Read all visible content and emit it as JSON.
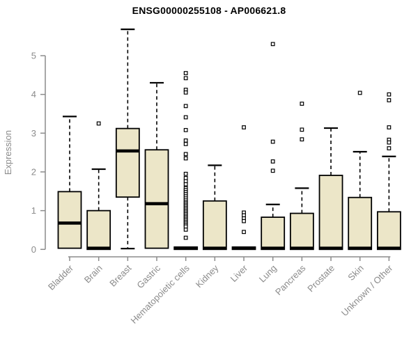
{
  "chart_data": {
    "type": "boxplot",
    "title": "ENSG00000255108 - AP006621.8",
    "ylabel": "Expression",
    "ylim": [
      0,
      5
    ],
    "yticks": [
      0,
      1,
      2,
      3,
      4,
      5
    ],
    "grid": false,
    "legend": "none",
    "categories": [
      "Bladder",
      "Brain",
      "Breast",
      "Gastric",
      "Hematopoietic cells",
      "Kidney",
      "Liver",
      "Lung",
      "Pancreas",
      "Prostate",
      "Skin",
      "Unknown / Other"
    ],
    "series": [
      {
        "category": "Bladder",
        "q1": 0.03,
        "median": 0.68,
        "q3": 1.49,
        "whisker_low": null,
        "whisker_high": 3.43,
        "outliers": []
      },
      {
        "category": "Brain",
        "q1": 0.0,
        "median": 0.03,
        "q3": 1.0,
        "whisker_low": null,
        "whisker_high": 2.07,
        "outliers": [
          3.25
        ]
      },
      {
        "category": "Breast",
        "q1": 1.35,
        "median": 2.54,
        "q3": 3.12,
        "whisker_low": 0.02,
        "whisker_high": 5.68,
        "outliers": []
      },
      {
        "category": "Gastric",
        "q1": 0.03,
        "median": 1.18,
        "q3": 2.57,
        "whisker_low": null,
        "whisker_high": 4.3,
        "outliers": []
      },
      {
        "category": "Hematopoietic cells",
        "q1": 0.0,
        "median": 0.03,
        "q3": 0.06,
        "whisker_low": null,
        "whisker_high": null,
        "outliers": [
          4.55,
          4.42,
          4.12,
          4.05,
          3.7,
          3.41,
          3.08,
          2.81,
          2.72,
          2.46,
          2.35,
          1.95,
          1.84,
          1.76,
          1.68,
          1.58,
          1.53,
          1.48,
          1.43,
          1.38,
          1.33,
          1.28,
          1.23,
          1.19,
          1.15,
          1.11,
          1.07,
          1.03,
          0.99,
          0.95,
          0.91,
          0.87,
          0.83,
          0.79,
          0.75,
          0.71,
          0.67,
          0.63,
          0.59,
          0.51,
          0.3
        ]
      },
      {
        "category": "Kidney",
        "q1": 0.0,
        "median": 0.03,
        "q3": 1.25,
        "whisker_low": null,
        "whisker_high": 2.17,
        "outliers": []
      },
      {
        "category": "Liver",
        "q1": 0.0,
        "median": 0.03,
        "q3": 0.06,
        "whisker_low": null,
        "whisker_high": null,
        "outliers": [
          3.15,
          0.95,
          0.88,
          0.8,
          0.73,
          0.45
        ]
      },
      {
        "category": "Lung",
        "q1": 0.0,
        "median": 0.03,
        "q3": 0.83,
        "whisker_low": null,
        "whisker_high": 1.16,
        "outliers": [
          5.3,
          2.78,
          2.27,
          2.03
        ]
      },
      {
        "category": "Pancreas",
        "q1": 0.0,
        "median": 0.03,
        "q3": 0.93,
        "whisker_low": null,
        "whisker_high": 1.58,
        "outliers": [
          3.76,
          3.09,
          2.84
        ]
      },
      {
        "category": "Prostate",
        "q1": 0.0,
        "median": 0.03,
        "q3": 1.91,
        "whisker_low": null,
        "whisker_high": 3.13,
        "outliers": []
      },
      {
        "category": "Skin",
        "q1": 0.0,
        "median": 0.03,
        "q3": 1.34,
        "whisker_low": null,
        "whisker_high": 2.52,
        "outliers": [
          4.04
        ]
      },
      {
        "category": "Unknown / Other",
        "q1": 0.0,
        "median": 0.03,
        "q3": 0.97,
        "whisker_low": null,
        "whisker_high": 2.4,
        "outliers": [
          4.0,
          3.85,
          3.15,
          2.83,
          2.76,
          2.61
        ]
      }
    ],
    "colors": {
      "box_fill": "#ECE6C8",
      "box_stroke": "#000000",
      "median": "#000000",
      "whisker": "#000000",
      "outlier_stroke": "#000000",
      "outlier_fill": "#ffffff",
      "axis": "#8b8b8b",
      "title": "#000000",
      "background": "#ffffff"
    }
  }
}
